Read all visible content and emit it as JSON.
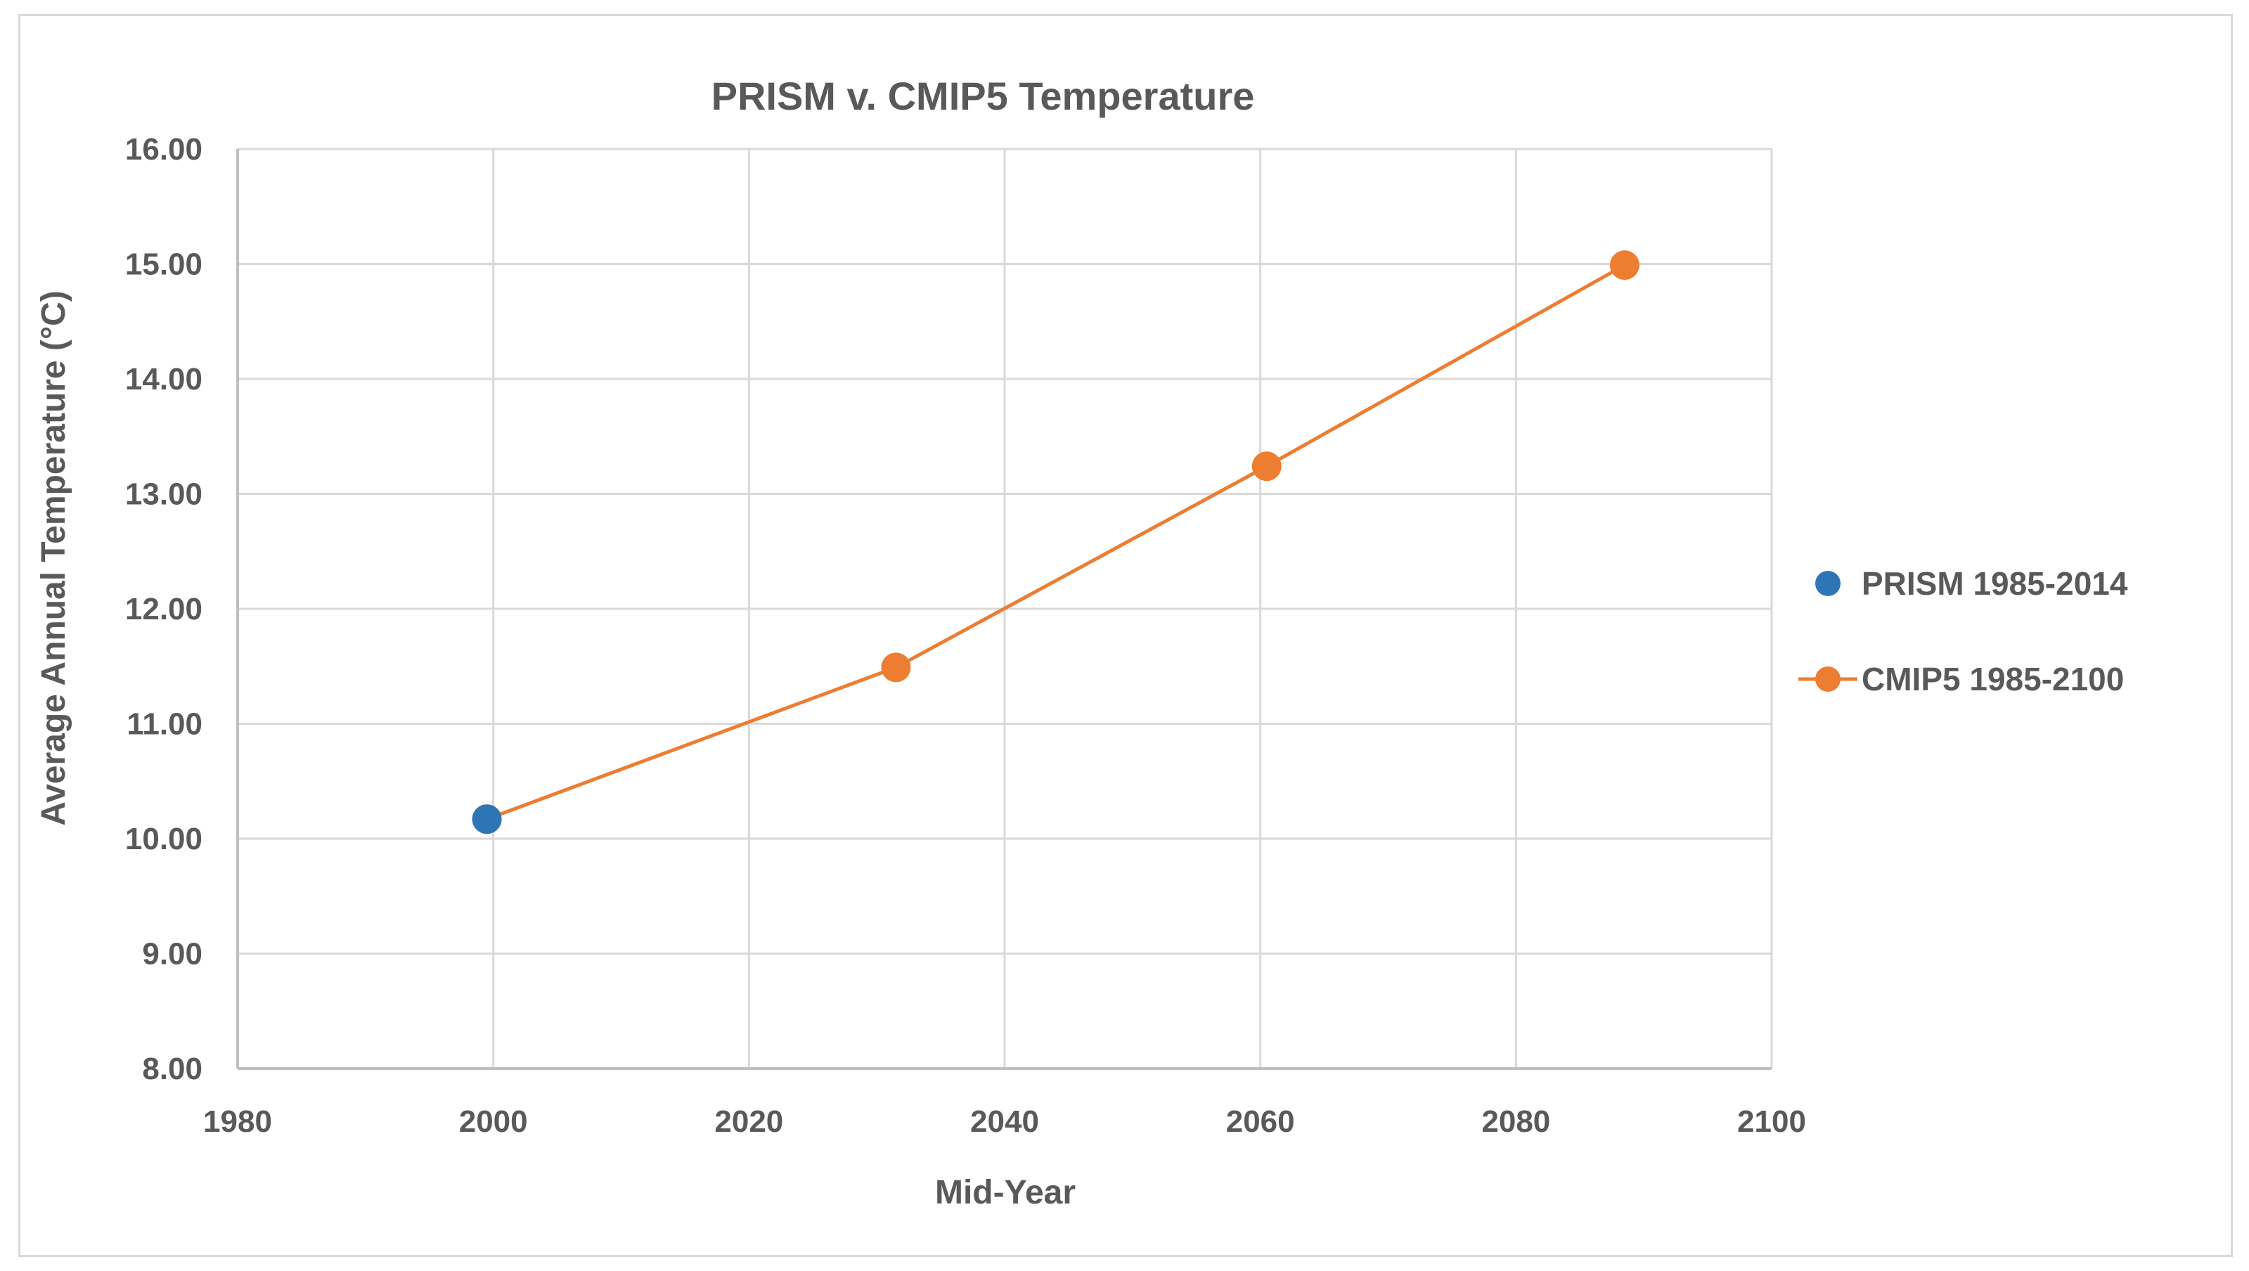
{
  "chart_data": {
    "type": "scatter",
    "title": "PRISM v. CMIP5 Temperature",
    "xlabel": "Mid-Year",
    "ylabel": "Average Annual Temperature (°C)",
    "xlim": [
      1980,
      2100
    ],
    "ylim": [
      8.0,
      16.0
    ],
    "x_ticks": [
      "1980",
      "2000",
      "2020",
      "2040",
      "2060",
      "2080",
      "2100"
    ],
    "y_ticks": [
      "16.00",
      "15.00",
      "14.00",
      "13.00",
      "12.00",
      "11.00",
      "10.00",
      "9.00",
      "8.00"
    ],
    "grid": true,
    "legend_position": "right",
    "series": [
      {
        "name": "PRISM 1985-2014",
        "color": "#2e75b6",
        "line": false,
        "points": [
          {
            "x": 1999.5,
            "y": 10.17
          }
        ]
      },
      {
        "name": "CMIP5 1985-2100",
        "color": "#ed7d31",
        "line": true,
        "points": [
          {
            "x": 1999.5,
            "y": 10.17
          },
          {
            "x": 2031.5,
            "y": 11.49
          },
          {
            "x": 2060.5,
            "y": 13.24
          },
          {
            "x": 2088.5,
            "y": 14.99
          }
        ]
      }
    ]
  }
}
